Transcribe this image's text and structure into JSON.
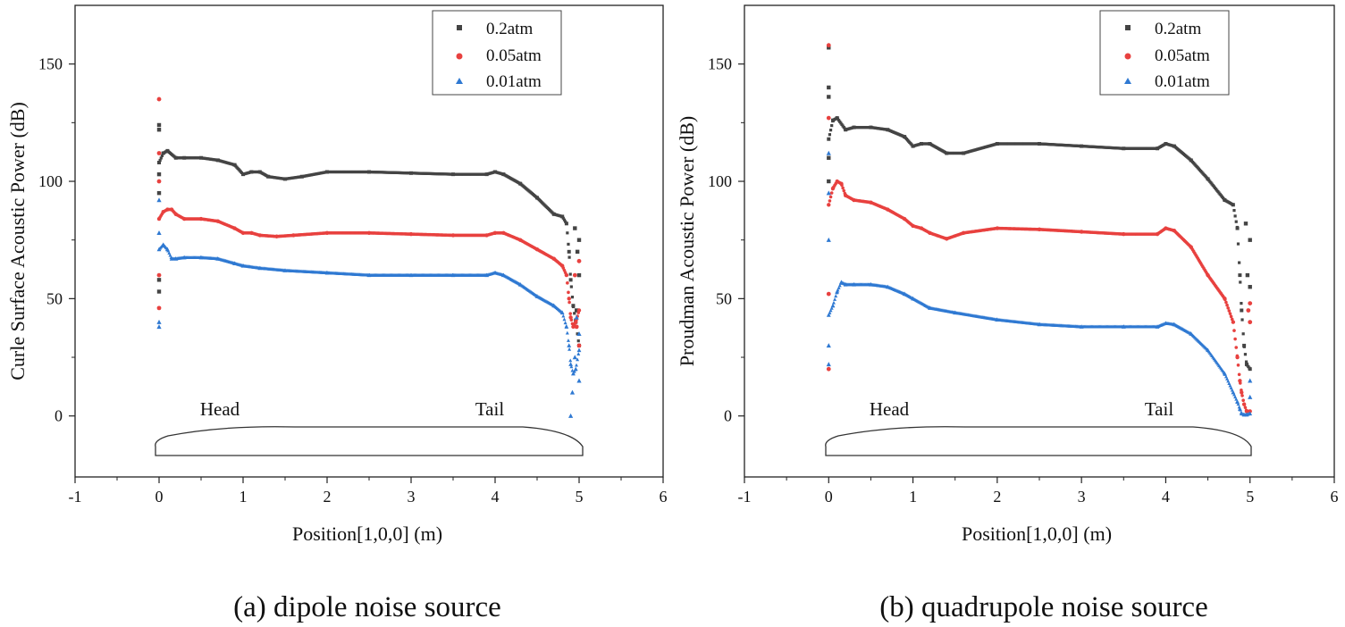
{
  "figure": {
    "caption_a": "(a) dipole noise source",
    "caption_b": "(b) quadrupole noise source"
  },
  "chart_data": [
    {
      "type": "scatter",
      "id": "a",
      "xlabel": "Position[1,0,0] (m)",
      "ylabel": "Curle Surface Acoustic Power (dB)",
      "xlim": [
        -1,
        6
      ],
      "ylim": [
        -26,
        175
      ],
      "xticks": [
        -1,
        0,
        1,
        2,
        3,
        4,
        5,
        6
      ],
      "yticks": [
        0,
        50,
        100,
        150
      ],
      "xtick_labels": [
        "-1",
        "0",
        "1",
        "2",
        "3",
        "4",
        "5",
        "6"
      ],
      "ytick_labels": [
        "0",
        "50",
        "100",
        "150"
      ],
      "legend_position": "top-right",
      "annotations": [
        {
          "text": "Head",
          "x": 0.75,
          "y": 1
        },
        {
          "text": "Tail",
          "x": 4.08,
          "y": 1
        }
      ],
      "series": [
        {
          "name": "0.2atm",
          "color": "#444444",
          "marker": "square",
          "x": [
            0,
            0.05,
            0.1,
            0.2,
            0.3,
            0.5,
            0.7,
            0.9,
            1.0,
            1.1,
            1.2,
            1.3,
            1.5,
            1.7,
            2.0,
            2.5,
            3.0,
            3.5,
            3.9,
            4.0,
            4.1,
            4.3,
            4.5,
            4.7,
            4.8,
            4.85,
            4.88,
            4.9,
            4.93,
            4.96,
            5.0
          ],
          "y": [
            108,
            112,
            113,
            110,
            110,
            110,
            109,
            107,
            103,
            104,
            104,
            102,
            101,
            102,
            104,
            104,
            103.5,
            103,
            103,
            104,
            103,
            99,
            93,
            86,
            85,
            82,
            70,
            58,
            47,
            40,
            30
          ],
          "outliers_x": [
            0,
            0,
            0,
            0,
            0,
            0,
            4.95,
            4.97,
            4.98,
            5.0,
            5.0
          ],
          "outliers_y": [
            124,
            122,
            103,
            95,
            58,
            53,
            80,
            45,
            70,
            75,
            60
          ]
        },
        {
          "name": "0.05atm",
          "color": "#e8413f",
          "marker": "circle",
          "x": [
            0,
            0.05,
            0.1,
            0.15,
            0.2,
            0.3,
            0.5,
            0.7,
            0.9,
            1.0,
            1.1,
            1.2,
            1.4,
            1.6,
            2.0,
            2.5,
            3.0,
            3.5,
            3.9,
            4.0,
            4.1,
            4.3,
            4.5,
            4.7,
            4.8,
            4.85,
            4.88,
            4.9,
            4.93,
            4.96,
            5.0
          ],
          "y": [
            84,
            87,
            88,
            88,
            86,
            84,
            84,
            83,
            80,
            78,
            78,
            77,
            76.5,
            77,
            78,
            78,
            77.5,
            77,
            77,
            78,
            78,
            75,
            71,
            67,
            64,
            60,
            50,
            42,
            38,
            40,
            45
          ],
          "outliers_x": [
            0,
            0,
            0,
            0,
            0,
            4.95,
            4.97,
            5.0,
            5.0
          ],
          "outliers_y": [
            135,
            112,
            100,
            60,
            46,
            60,
            38,
            66,
            30
          ],
          "outliers_note": ""
        },
        {
          "name": "0.01atm",
          "color": "#2f79d2",
          "marker": "triangle",
          "x": [
            0,
            0.05,
            0.1,
            0.15,
            0.2,
            0.3,
            0.5,
            0.7,
            0.9,
            1.0,
            1.2,
            1.5,
            2.0,
            2.5,
            3.0,
            3.5,
            3.9,
            4.0,
            4.1,
            4.3,
            4.5,
            4.7,
            4.8,
            4.85,
            4.88,
            4.9,
            4.93,
            4.96,
            5.0
          ],
          "y": [
            71,
            73,
            71,
            67,
            67,
            67.5,
            67.5,
            67,
            65,
            64,
            63,
            62,
            61,
            60,
            60,
            60,
            60,
            61,
            60,
            56,
            51,
            47,
            44,
            38,
            30,
            22,
            18,
            20,
            28
          ],
          "outliers_x": [
            0,
            0,
            0,
            0,
            4.9,
            4.92,
            4.95,
            4.97,
            5.0,
            5.0
          ],
          "outliers_y": [
            38,
            40,
            92,
            78,
            0,
            10,
            25,
            42,
            35,
            15
          ]
        }
      ]
    },
    {
      "type": "scatter",
      "id": "b",
      "xlabel": "Position[1,0,0] (m)",
      "ylabel": "Proudman Acoustic Power (dB)",
      "xlim": [
        -1,
        6
      ],
      "ylim": [
        -26,
        175
      ],
      "xticks": [
        -1,
        0,
        1,
        2,
        3,
        4,
        5,
        6
      ],
      "yticks": [
        0,
        50,
        100,
        150
      ],
      "xtick_labels": [
        "-1",
        "0",
        "1",
        "2",
        "3",
        "4",
        "5",
        "6"
      ],
      "ytick_labels": [
        "0",
        "50",
        "100",
        "150"
      ],
      "legend_position": "top-right",
      "annotations": [
        {
          "text": "Head",
          "x": 0.75,
          "y": 1
        },
        {
          "text": "Tail",
          "x": 4.08,
          "y": 1
        }
      ],
      "series": [
        {
          "name": "0.2atm",
          "color": "#444444",
          "marker": "square",
          "x": [
            0,
            0.05,
            0.1,
            0.2,
            0.3,
            0.5,
            0.7,
            0.9,
            1.0,
            1.1,
            1.2,
            1.4,
            1.6,
            2.0,
            2.5,
            3.0,
            3.5,
            3.9,
            4.0,
            4.1,
            4.3,
            4.5,
            4.7,
            4.8,
            4.85,
            4.88,
            4.9,
            4.93,
            4.96,
            5.0
          ],
          "y": [
            118,
            126,
            127,
            122,
            123,
            123,
            122,
            119,
            115,
            116,
            116,
            112,
            112,
            116,
            116,
            115,
            114,
            114,
            116,
            115,
            109,
            101,
            92,
            90,
            80,
            60,
            45,
            30,
            22,
            20
          ],
          "outliers_x": [
            0,
            0,
            0,
            0,
            0,
            4.95,
            4.97,
            5.0,
            5.0
          ],
          "outliers_y": [
            157,
            140,
            136,
            110,
            100,
            82,
            60,
            75,
            55
          ]
        },
        {
          "name": "0.05atm",
          "color": "#e8413f",
          "marker": "circle",
          "x": [
            0,
            0.05,
            0.1,
            0.15,
            0.2,
            0.3,
            0.5,
            0.7,
            0.9,
            1.0,
            1.1,
            1.2,
            1.4,
            1.6,
            2.0,
            2.5,
            3.0,
            3.5,
            3.9,
            4.0,
            4.1,
            4.3,
            4.5,
            4.7,
            4.8,
            4.85,
            4.88,
            4.9,
            4.93,
            4.96,
            5.0
          ],
          "y": [
            90,
            97,
            100,
            99,
            94,
            92,
            91,
            88,
            84,
            81,
            80,
            78,
            75.5,
            78,
            80,
            79.5,
            78.5,
            77.5,
            77.5,
            80,
            79,
            72,
            60,
            50,
            40,
            25,
            15,
            10,
            5,
            2,
            2
          ],
          "outliers_x": [
            0,
            0,
            0,
            0,
            4.98,
            5.0,
            5.0
          ],
          "outliers_y": [
            158,
            127,
            20,
            52,
            45,
            40,
            48
          ]
        },
        {
          "name": "0.01atm",
          "color": "#2f79d2",
          "marker": "triangle",
          "x": [
            0,
            0.05,
            0.1,
            0.15,
            0.2,
            0.3,
            0.5,
            0.7,
            0.9,
            1.0,
            1.2,
            1.5,
            2.0,
            2.5,
            3.0,
            3.5,
            3.9,
            4.0,
            4.1,
            4.3,
            4.5,
            4.7,
            4.8,
            4.85,
            4.88,
            4.9,
            4.93,
            4.96,
            5.0
          ],
          "y": [
            43,
            47,
            53,
            57,
            56,
            56,
            56,
            55,
            52,
            50,
            46,
            44,
            41,
            39,
            38,
            38,
            38,
            39.5,
            39,
            35,
            28,
            18,
            10,
            6,
            3,
            1,
            0.5,
            0.5,
            1
          ],
          "outliers_x": [
            0,
            0,
            0,
            0,
            0,
            5.0,
            5.0
          ],
          "outliers_y": [
            22,
            30,
            75,
            112,
            95,
            15,
            8
          ]
        }
      ]
    }
  ]
}
